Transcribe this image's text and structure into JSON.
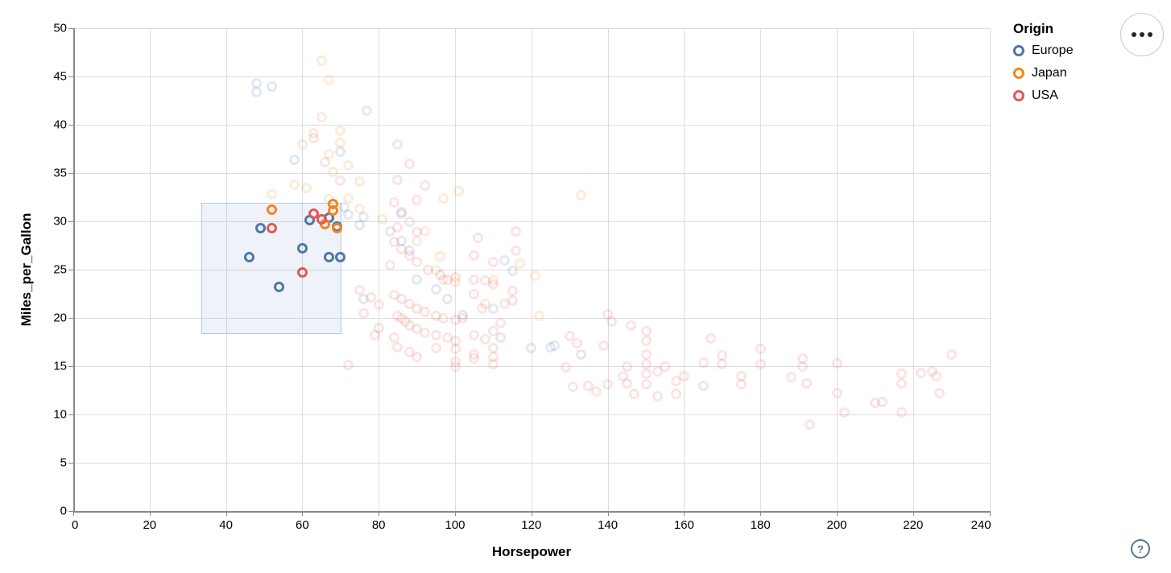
{
  "chart_data": {
    "type": "scatter",
    "title": "",
    "xlabel": "Horsepower",
    "ylabel": "Miles_per_Gallon",
    "x_domain": [
      0,
      240
    ],
    "y_domain": [
      0,
      50
    ],
    "x_ticks": [
      0,
      20,
      40,
      60,
      80,
      100,
      120,
      140,
      160,
      180,
      200,
      220,
      240
    ],
    "y_ticks": [
      0,
      5,
      10,
      15,
      20,
      25,
      30,
      35,
      40,
      45,
      50
    ],
    "grid": true,
    "legend_position": "top-right",
    "legend_title": "Origin",
    "series_colors": {
      "Europe": "#4c78a8",
      "Japan": "#f58518",
      "USA": "#e45756"
    },
    "unselected_opacity": 0.16,
    "brush_selection": {
      "hp": [
        33.5,
        70.2
      ],
      "mpg": [
        18.3,
        31.9
      ]
    },
    "series": [
      {
        "name": "Europe",
        "points": [
          [
            46,
            26.3
          ],
          [
            49,
            29.3
          ],
          [
            54,
            23.2
          ],
          [
            60,
            27.2
          ],
          [
            62,
            30.1
          ],
          [
            67,
            30.4
          ],
          [
            69,
            29.5
          ],
          [
            67,
            26.3
          ],
          [
            70,
            26.3
          ],
          [
            48,
            44.3
          ],
          [
            48,
            43.4
          ],
          [
            52,
            44.0
          ],
          [
            77,
            41.5
          ],
          [
            58,
            36.4
          ],
          [
            70,
            37.2
          ],
          [
            71,
            31.5
          ],
          [
            72,
            30.7
          ],
          [
            76,
            30.5
          ],
          [
            86,
            30.8
          ],
          [
            75,
            29.6
          ],
          [
            83,
            29.0
          ],
          [
            86,
            28.0
          ],
          [
            88,
            27.0
          ],
          [
            113,
            26.0
          ],
          [
            115,
            24.9
          ],
          [
            90,
            24.0
          ],
          [
            95,
            23.0
          ],
          [
            98,
            22.0
          ],
          [
            76,
            22.0
          ],
          [
            110,
            21.0
          ],
          [
            102,
            20.3
          ],
          [
            112,
            18.0
          ],
          [
            120,
            16.9
          ],
          [
            126,
            17.1
          ],
          [
            125,
            17.0
          ],
          [
            133,
            16.2
          ]
        ]
      },
      {
        "name": "Japan",
        "points": [
          [
            52,
            31.2
          ],
          [
            68,
            31.8
          ],
          [
            68,
            31.1
          ],
          [
            66,
            29.7
          ],
          [
            69,
            29.3
          ],
          [
            65,
            46.6
          ],
          [
            67,
            44.6
          ],
          [
            65,
            40.8
          ],
          [
            70,
            39.4
          ],
          [
            63,
            39.1
          ],
          [
            60,
            38.0
          ],
          [
            70,
            38.1
          ],
          [
            67,
            37.0
          ],
          [
            72,
            35.8
          ],
          [
            68,
            35.1
          ],
          [
            58,
            33.8
          ],
          [
            61,
            33.5
          ],
          [
            67,
            32.3
          ],
          [
            75,
            34.1
          ],
          [
            52,
            32.8
          ],
          [
            72,
            32.4
          ],
          [
            97,
            32.4
          ],
          [
            101,
            33.1
          ],
          [
            133,
            32.7
          ],
          [
            117,
            25.6
          ],
          [
            121,
            24.4
          ],
          [
            95,
            25.0
          ],
          [
            97,
            24.0
          ],
          [
            100,
            23.7
          ],
          [
            92,
            29.0
          ],
          [
            75,
            31.3
          ],
          [
            81,
            30.2
          ],
          [
            90,
            28.0
          ],
          [
            96,
            26.4
          ],
          [
            110,
            23.9
          ],
          [
            122,
            20.2
          ],
          [
            108,
            21.5
          ]
        ]
      },
      {
        "name": "USA",
        "points": [
          [
            52,
            29.3
          ],
          [
            63,
            30.8
          ],
          [
            65,
            30.2
          ],
          [
            60,
            24.7
          ],
          [
            63,
            38.6
          ],
          [
            66,
            36.1
          ],
          [
            70,
            34.2
          ],
          [
            85,
            38.0
          ],
          [
            88,
            36.0
          ],
          [
            92,
            33.7
          ],
          [
            85,
            34.3
          ],
          [
            84,
            32.0
          ],
          [
            86,
            31.0
          ],
          [
            90,
            32.2
          ],
          [
            116,
            29.0
          ],
          [
            106,
            28.3
          ],
          [
            116,
            27.0
          ],
          [
            105,
            26.5
          ],
          [
            110,
            25.8
          ],
          [
            88,
            30.0
          ],
          [
            85,
            29.4
          ],
          [
            90,
            28.9
          ],
          [
            84,
            27.9
          ],
          [
            86,
            27.1
          ],
          [
            88,
            26.5
          ],
          [
            90,
            25.8
          ],
          [
            93,
            25.0
          ],
          [
            83,
            25.5
          ],
          [
            96,
            24.5
          ],
          [
            100,
            24.2
          ],
          [
            98,
            24.0
          ],
          [
            105,
            24.0
          ],
          [
            110,
            23.5
          ],
          [
            115,
            22.8
          ],
          [
            113,
            21.5
          ],
          [
            75,
            22.9
          ],
          [
            78,
            22.1
          ],
          [
            80,
            21.4
          ],
          [
            84,
            22.4
          ],
          [
            86,
            22.0
          ],
          [
            88,
            21.5
          ],
          [
            90,
            21.0
          ],
          [
            92,
            20.6
          ],
          [
            95,
            20.2
          ],
          [
            97,
            20.0
          ],
          [
            100,
            19.8
          ],
          [
            85,
            20.2
          ],
          [
            87,
            19.6
          ],
          [
            88,
            19.2
          ],
          [
            90,
            18.9
          ],
          [
            92,
            18.5
          ],
          [
            95,
            18.2
          ],
          [
            98,
            18.0
          ],
          [
            100,
            17.6
          ],
          [
            86,
            20.0
          ],
          [
            84,
            18.0
          ],
          [
            80,
            19.0
          ],
          [
            76,
            20.5
          ],
          [
            79,
            18.2
          ],
          [
            102,
            20.0
          ],
          [
            107,
            21.0
          ],
          [
            112,
            19.5
          ],
          [
            105,
            22.5
          ],
          [
            108,
            23.9
          ],
          [
            115,
            21.8
          ],
          [
            110,
            18.6
          ],
          [
            105,
            18.2
          ],
          [
            108,
            17.8
          ],
          [
            85,
            17.0
          ],
          [
            88,
            16.5
          ],
          [
            90,
            16.0
          ],
          [
            95,
            16.9
          ],
          [
            100,
            15.5
          ],
          [
            105,
            16.2
          ],
          [
            110,
            16.0
          ],
          [
            110,
            15.2
          ],
          [
            100,
            15.0
          ],
          [
            72,
            15.1
          ],
          [
            100,
            16.8
          ],
          [
            105,
            15.8
          ],
          [
            110,
            16.9
          ],
          [
            130,
            18.1
          ],
          [
            132,
            17.4
          ],
          [
            140,
            20.4
          ],
          [
            141,
            19.6
          ],
          [
            146,
            19.2
          ],
          [
            139,
            17.1
          ],
          [
            150,
            18.6
          ],
          [
            150,
            17.6
          ],
          [
            150,
            16.25
          ],
          [
            150,
            15.25
          ],
          [
            150,
            14.2
          ],
          [
            150,
            13.1
          ],
          [
            145,
            15.0
          ],
          [
            144,
            14.0
          ],
          [
            153,
            14.5
          ],
          [
            158,
            13.5
          ],
          [
            155,
            15.0
          ],
          [
            160,
            14.0
          ],
          [
            165,
            15.4
          ],
          [
            167,
            17.9
          ],
          [
            170,
            16.1
          ],
          [
            170,
            15.25
          ],
          [
            175,
            14.0
          ],
          [
            180,
            16.8
          ],
          [
            180,
            15.25
          ],
          [
            165,
            13.0
          ],
          [
            158,
            12.1
          ],
          [
            145,
            13.2
          ],
          [
            137,
            12.4
          ],
          [
            135,
            13.0
          ],
          [
            131,
            12.9
          ],
          [
            140,
            13.1
          ],
          [
            147,
            12.1
          ],
          [
            129,
            14.9
          ],
          [
            175,
            13.1
          ],
          [
            153,
            11.9
          ],
          [
            191,
            15.8
          ],
          [
            191,
            15.0
          ],
          [
            200,
            15.3
          ],
          [
            192,
            13.2
          ],
          [
            200,
            12.25
          ],
          [
            202,
            10.2
          ],
          [
            193,
            9.0
          ],
          [
            210,
            11.25
          ],
          [
            212,
            11.3
          ],
          [
            217,
            14.25
          ],
          [
            217,
            13.2
          ],
          [
            217,
            10.2
          ],
          [
            222,
            14.3
          ],
          [
            225,
            14.5
          ],
          [
            226,
            14.0
          ],
          [
            227,
            12.2
          ],
          [
            230,
            16.2
          ],
          [
            188,
            13.9
          ]
        ]
      }
    ],
    "legend_items": [
      {
        "label": "Europe",
        "color": "#4c78a8"
      },
      {
        "label": "Japan",
        "color": "#f58518"
      },
      {
        "label": "USA",
        "color": "#e45756"
      }
    ]
  },
  "axes": {
    "x_title": "Horsepower",
    "y_title": "Miles_per_Gallon"
  },
  "legend": {
    "title": "Origin"
  },
  "actions_button": {
    "icon": "ellipsis"
  },
  "help_button": {
    "label": "?"
  }
}
